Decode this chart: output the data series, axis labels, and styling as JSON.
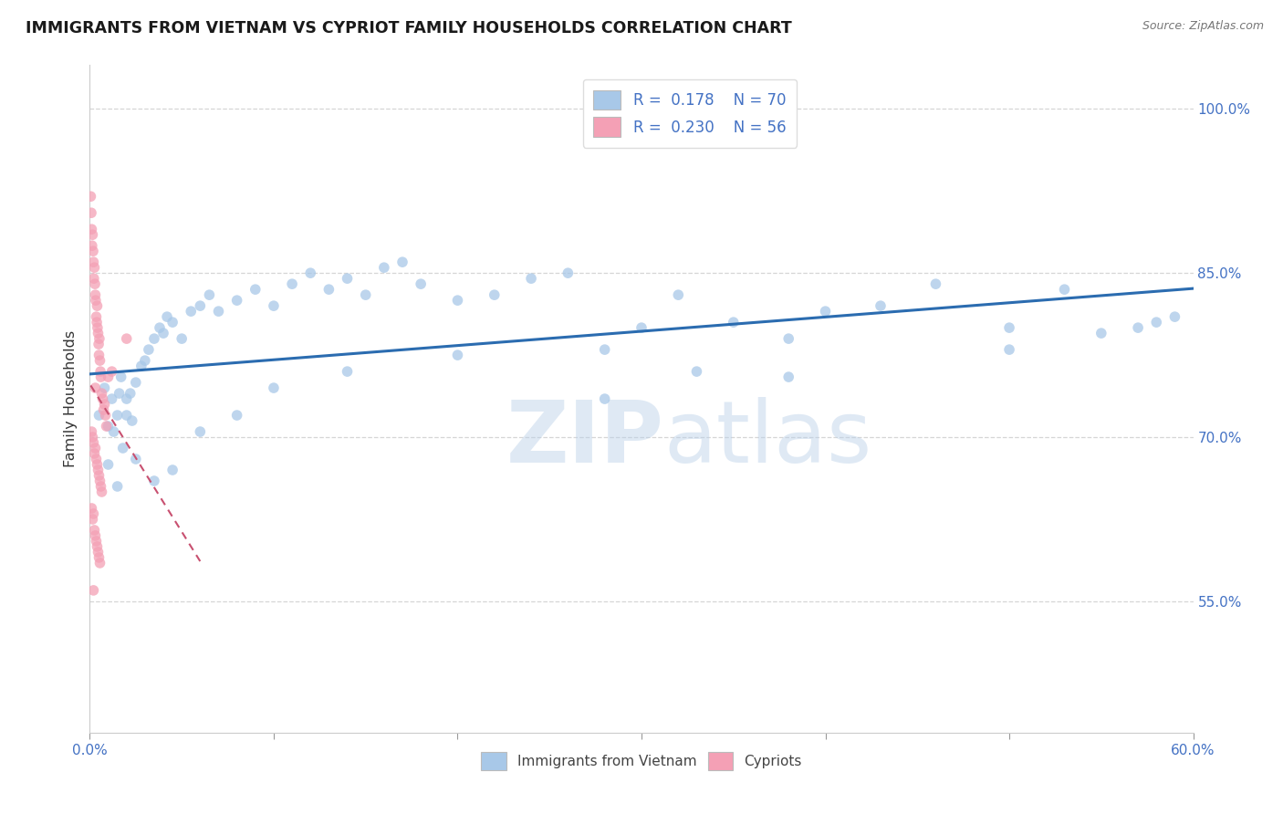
{
  "title": "IMMIGRANTS FROM VIETNAM VS CYPRIOT FAMILY HOUSEHOLDS CORRELATION CHART",
  "source": "Source: ZipAtlas.com",
  "ylabel": "Family Households",
  "y_ticks": [
    55.0,
    70.0,
    85.0,
    100.0
  ],
  "y_tick_labels": [
    "55.0%",
    "70.0%",
    "85.0%",
    "100.0%"
  ],
  "xlim": [
    0.0,
    60.0
  ],
  "ylim": [
    43.0,
    104.0
  ],
  "legend_r1": "R =  0.178",
  "legend_n1": "N = 70",
  "legend_r2": "R =  0.230",
  "legend_n2": "N = 56",
  "blue_color": "#a8c8e8",
  "pink_color": "#f4a0b5",
  "trend_blue": "#2b6cb0",
  "trend_pink": "#c85070",
  "watermark_zip": "ZIP",
  "watermark_atlas": "atlas",
  "background_color": "#ffffff",
  "grid_color": "#cccccc",
  "blue_points_x": [
    0.5,
    0.8,
    1.0,
    1.2,
    1.3,
    1.5,
    1.6,
    1.7,
    1.8,
    2.0,
    2.0,
    2.2,
    2.3,
    2.5,
    2.8,
    3.0,
    3.2,
    3.5,
    3.8,
    4.0,
    4.2,
    4.5,
    5.0,
    5.5,
    6.0,
    6.5,
    7.0,
    8.0,
    9.0,
    10.0,
    11.0,
    12.0,
    13.0,
    14.0,
    15.0,
    16.0,
    17.0,
    18.0,
    20.0,
    22.0,
    24.0,
    26.0,
    28.0,
    30.0,
    32.0,
    35.0,
    38.0,
    40.0,
    43.0,
    46.0,
    50.0,
    53.0,
    55.0,
    57.0,
    59.0,
    1.0,
    1.5,
    2.5,
    3.5,
    4.5,
    6.0,
    8.0,
    10.0,
    14.0,
    20.0,
    28.0,
    38.0,
    50.0,
    58.0,
    33.0
  ],
  "blue_points_y": [
    72.0,
    74.5,
    71.0,
    73.5,
    70.5,
    72.0,
    74.0,
    75.5,
    69.0,
    72.0,
    73.5,
    74.0,
    71.5,
    75.0,
    76.5,
    77.0,
    78.0,
    79.0,
    80.0,
    79.5,
    81.0,
    80.5,
    79.0,
    81.5,
    82.0,
    83.0,
    81.5,
    82.5,
    83.5,
    82.0,
    84.0,
    85.0,
    83.5,
    84.5,
    83.0,
    85.5,
    86.0,
    84.0,
    82.5,
    83.0,
    84.5,
    85.0,
    78.0,
    80.0,
    83.0,
    80.5,
    79.0,
    81.5,
    82.0,
    84.0,
    80.0,
    83.5,
    79.5,
    80.0,
    81.0,
    67.5,
    65.5,
    68.0,
    66.0,
    67.0,
    70.5,
    72.0,
    74.5,
    76.0,
    77.5,
    73.5,
    75.5,
    78.0,
    80.5,
    76.0
  ],
  "pink_points_x": [
    0.05,
    0.08,
    0.1,
    0.12,
    0.15,
    0.18,
    0.2,
    0.22,
    0.25,
    0.28,
    0.3,
    0.32,
    0.35,
    0.38,
    0.4,
    0.42,
    0.45,
    0.48,
    0.5,
    0.52,
    0.55,
    0.58,
    0.6,
    0.65,
    0.7,
    0.75,
    0.8,
    0.85,
    0.9,
    0.1,
    0.15,
    0.2,
    0.25,
    0.3,
    0.35,
    0.4,
    0.45,
    0.5,
    0.55,
    0.6,
    0.65,
    0.1,
    0.15,
    0.2,
    0.25,
    0.3,
    0.35,
    0.4,
    0.45,
    0.5,
    0.55,
    0.3,
    1.2,
    1.0,
    2.0,
    0.2
  ],
  "pink_points_y": [
    92.0,
    90.5,
    89.0,
    87.5,
    88.5,
    87.0,
    86.0,
    84.5,
    85.5,
    84.0,
    83.0,
    82.5,
    81.0,
    80.5,
    82.0,
    80.0,
    79.5,
    78.5,
    77.5,
    79.0,
    77.0,
    76.0,
    75.5,
    74.0,
    73.5,
    72.5,
    73.0,
    72.0,
    71.0,
    70.5,
    70.0,
    69.5,
    68.5,
    69.0,
    68.0,
    67.5,
    67.0,
    66.5,
    66.0,
    65.5,
    65.0,
    63.5,
    62.5,
    63.0,
    61.5,
    61.0,
    60.5,
    60.0,
    59.5,
    59.0,
    58.5,
    74.5,
    76.0,
    75.5,
    79.0,
    56.0
  ]
}
